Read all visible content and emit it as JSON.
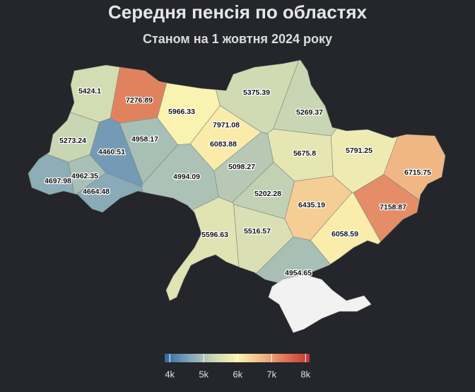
{
  "chart_data": {
    "type": "choropleth",
    "title": "Середня пенсія по областях",
    "subtitle": "Станом на 1 жовтня 2024 року",
    "values": [
      5424.1,
      7276.89,
      5966.33,
      5375.39,
      5269.37,
      7971.08,
      5273.24,
      4460.51,
      4958.17,
      6083.88,
      5675.8,
      5791.25,
      6715.75,
      4962.35,
      4994.09,
      5098.27,
      4697.98,
      4664.48,
      5202.28,
      6435.19,
      7158.87,
      5596.63,
      5516.57,
      6058.59,
      4954.65
    ],
    "colors": [
      "#2c6aa3",
      "#7fa3b8",
      "#c9d6b4",
      "#fbf3b0",
      "#f1b985",
      "#dd7656",
      "#c0362f"
    ],
    "colorlim": [
      3850,
      8120
    ],
    "colorticks": [
      {
        "value": 4000,
        "label": "4k"
      },
      {
        "value": 5000,
        "label": "5k"
      },
      {
        "value": 6000,
        "label": "6k"
      },
      {
        "value": 7000,
        "label": "7k"
      },
      {
        "value": 8000,
        "label": "8k"
      }
    ]
  }
}
